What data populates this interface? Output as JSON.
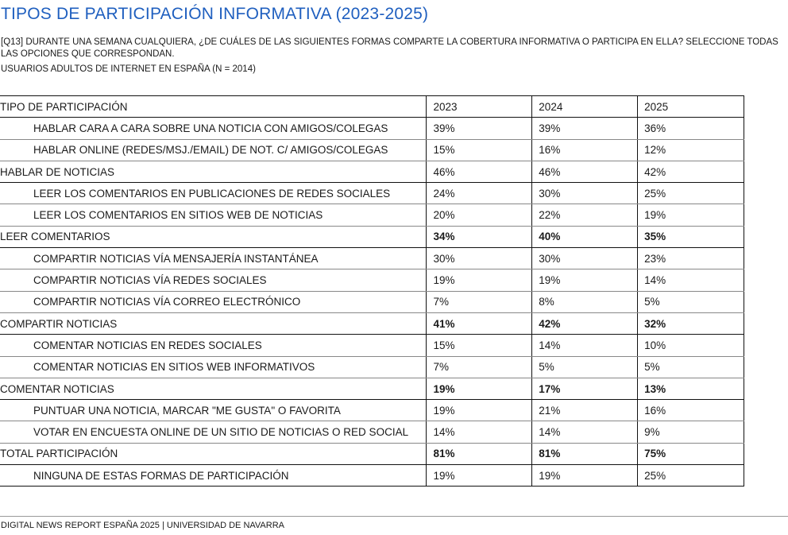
{
  "title": "TIPOS DE PARTICIPACIÓN INFORMATIVA (2023-2025)",
  "question": "[Q13] DURANTE UNA SEMANA CUALQUIERA, ¿DE CUÁLES DE LAS SIGUIENTES FORMAS COMPARTE LA COBERTURA INFORMATIVA O PARTICIPA EN ELLA? SELECCIONE TODAS LAS OPCIONES QUE CORRESPONDAN.",
  "sample": "USUARIOS ADULTOS DE INTERNET EN ESPAÑA (N = 2014)",
  "table": {
    "headers": [
      "TIPO DE PARTICIPACIÓN",
      "2023",
      "2024",
      "2025"
    ],
    "rows": [
      {
        "label": "HABLAR CARA A CARA SOBRE UNA NOTICIA CON AMIGOS/COLEGAS",
        "values": [
          "39%",
          "39%",
          "36%"
        ]
      },
      {
        "label": "HABLAR ONLINE (REDES/MSJ./EMAIL) DE NOT. C/ AMIGOS/COLEGAS",
        "values": [
          "15%",
          "16%",
          "12%"
        ]
      },
      {
        "label": "HABLAR DE NOTICIAS",
        "values": [
          "46%",
          "46%",
          "42%"
        ]
      },
      {
        "label": "LEER LOS COMENTARIOS EN PUBLICACIONES DE REDES SOCIALES",
        "values": [
          "24%",
          "30%",
          "25%"
        ]
      },
      {
        "label": "LEER LOS COMENTARIOS EN SITIOS WEB DE NOTICIAS",
        "values": [
          "20%",
          "22%",
          "19%"
        ]
      },
      {
        "label": "LEER COMENTARIOS",
        "values": [
          "34%",
          "40%",
          "35%"
        ]
      },
      {
        "label": "COMPARTIR NOTICIAS VÍA MENSAJERÍA INSTANTÁNEA",
        "values": [
          "30%",
          "30%",
          "23%"
        ]
      },
      {
        "label": "COMPARTIR NOTICIAS VÍA REDES SOCIALES",
        "values": [
          "19%",
          "19%",
          "14%"
        ]
      },
      {
        "label": "COMPARTIR NOTICIAS VÍA CORREO ELECTRÓNICO",
        "values": [
          "7%",
          "8%",
          "5%"
        ]
      },
      {
        "label": "COMPARTIR NOTICIAS",
        "values": [
          "41%",
          "42%",
          "32%"
        ]
      },
      {
        "label": "COMENTAR NOTICIAS EN REDES SOCIALES",
        "values": [
          "15%",
          "14%",
          "10%"
        ]
      },
      {
        "label": "COMENTAR NOTICIAS EN SITIOS WEB INFORMATIVOS",
        "values": [
          "7%",
          "5%",
          "5%"
        ]
      },
      {
        "label": "COMENTAR NOTICIAS",
        "values": [
          "19%",
          "17%",
          "13%"
        ]
      },
      {
        "label": "PUNTUAR UNA NOTICIA, MARCAR \"ME GUSTA\" O FAVORITA",
        "values": [
          "19%",
          "21%",
          "16%"
        ]
      },
      {
        "label": "VOTAR EN ENCUESTA ONLINE DE UN SITIO DE NOTICIAS O RED SOCIAL",
        "values": [
          "14%",
          "14%",
          "9%"
        ]
      },
      {
        "label": "TOTAL PARTICIPACIÓN",
        "values": [
          "81%",
          "81%",
          "75%"
        ]
      },
      {
        "label": "NINGUNA DE ESTAS FORMAS DE PARTICIPACIÓN",
        "values": [
          "19%",
          "19%",
          "25%"
        ]
      }
    ]
  },
  "footer": "DIGITAL NEWS REPORT ESPAÑA 2025 | UNIVERSIDAD DE NAVARRA",
  "colors": {
    "title": "#1f5fbf",
    "text": "#1a1a1a",
    "rule": "#111111"
  }
}
